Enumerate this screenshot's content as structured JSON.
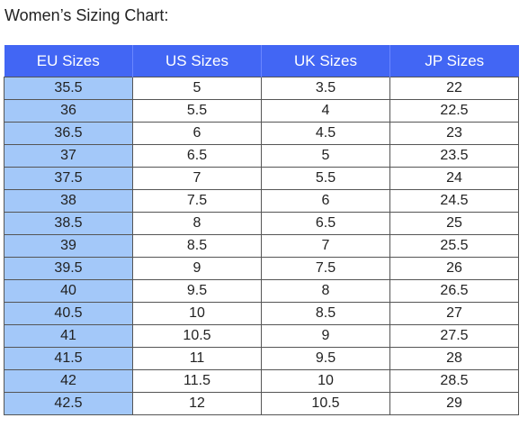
{
  "title": "Women’s Sizing Chart:",
  "table": {
    "headers": [
      "EU Sizes",
      "US Sizes",
      "UK Sizes",
      "JP Sizes"
    ],
    "rows": [
      [
        "35.5",
        "5",
        "3.5",
        "22"
      ],
      [
        "36",
        "5.5",
        "4",
        "22.5"
      ],
      [
        "36.5",
        "6",
        "4.5",
        "23"
      ],
      [
        "37",
        "6.5",
        "5",
        "23.5"
      ],
      [
        "37.5",
        "7",
        "5.5",
        "24"
      ],
      [
        "38",
        "7.5",
        "6",
        "24.5"
      ],
      [
        "38.5",
        "8",
        "6.5",
        "25"
      ],
      [
        "39",
        "8.5",
        "7",
        "25.5"
      ],
      [
        "39.5",
        "9",
        "7.5",
        "26"
      ],
      [
        "40",
        "9.5",
        "8",
        "26.5"
      ],
      [
        "40.5",
        "10",
        "8.5",
        "27"
      ],
      [
        "41",
        "10.5",
        "9",
        "27.5"
      ],
      [
        "41.5",
        "11",
        "9.5",
        "28"
      ],
      [
        "42",
        "11.5",
        "10",
        "28.5"
      ],
      [
        "42.5",
        "12",
        "10.5",
        "29"
      ]
    ]
  },
  "colors": {
    "header_background": "#4266f4",
    "header_text": "#ffffff",
    "eu_column_background": "#a3c8f9",
    "grid_line": "#555555"
  }
}
